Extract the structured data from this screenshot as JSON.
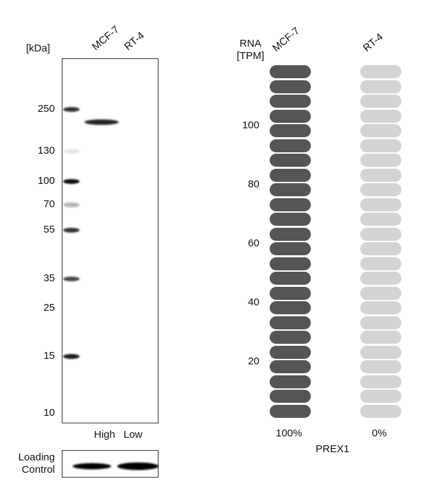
{
  "blot": {
    "unit_label": "[kDa]",
    "lanes": [
      "MCF-7",
      "RT-4"
    ],
    "markers": [
      {
        "label": "250",
        "kda": 250,
        "intensity": 0.8
      },
      {
        "label": "130",
        "kda": 130,
        "intensity": 0.1
      },
      {
        "label": "100",
        "kda": 100,
        "intensity": 0.95
      },
      {
        "label": "70",
        "kda": 70,
        "intensity": 0.3
      },
      {
        "label": "55",
        "kda": 55,
        "intensity": 0.8
      },
      {
        "label": "35",
        "kda": 35,
        "intensity": 0.7
      },
      {
        "label": "25",
        "kda": 25,
        "intensity": 0
      },
      {
        "label": "15",
        "kda": 15,
        "intensity": 0.9
      },
      {
        "label": "10",
        "kda": 10,
        "intensity": 0
      }
    ],
    "sample_bands": [
      {
        "lane": "MCF-7",
        "intensity": 0.85
      },
      {
        "lane": "RT-4",
        "intensity": 0
      }
    ],
    "lane_levels": [
      "High",
      "Low"
    ],
    "loading_control_label": [
      "Loading",
      "Control"
    ]
  },
  "chart_data": {
    "type": "bar",
    "title": "PREX1",
    "ylabel": [
      "RNA",
      "[TPM]"
    ],
    "categories": [
      "MCF-7",
      "RT-4"
    ],
    "values_percent": [
      100,
      0
    ],
    "value_labels": [
      "100%",
      "0%"
    ],
    "yticks": [
      20,
      40,
      60,
      80,
      100
    ],
    "ylim": [
      0,
      120
    ],
    "segments": 24,
    "colors": {
      "high": "#555555",
      "low": "#d4d4d4"
    }
  }
}
